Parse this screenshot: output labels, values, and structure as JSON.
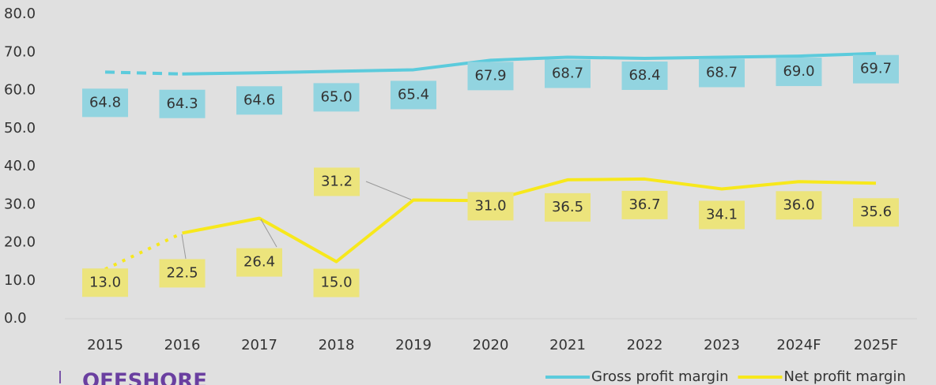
{
  "chart_data": {
    "type": "line",
    "categories": [
      "2015",
      "2016",
      "2017",
      "2018",
      "2019",
      "2020",
      "2021",
      "2022",
      "2023",
      "2024F",
      "2025F"
    ],
    "series": [
      {
        "name": "Gross profit margin",
        "color": "#5ccbdc",
        "label_color": "#92d4e0",
        "values": [
          64.8,
          64.3,
          64.6,
          65.0,
          65.4,
          67.9,
          68.7,
          68.4,
          68.7,
          69.0,
          69.7
        ],
        "value_labels": [
          "64.8",
          "64.3",
          "64.6",
          "65.0",
          "65.4",
          "67.9",
          "68.7",
          "68.4",
          "68.7",
          "69.0",
          "69.7"
        ]
      },
      {
        "name": "Net profit margin",
        "color": "#f7e81c",
        "label_color": "#ece47c",
        "values": [
          13.0,
          22.5,
          26.4,
          15.0,
          31.2,
          31.0,
          36.5,
          36.7,
          34.1,
          36.0,
          35.6
        ],
        "value_labels": [
          "13.0",
          "22.5",
          "26.4",
          "15.0",
          "31.2",
          "31.0",
          "36.5",
          "36.7",
          "34.1",
          "36.0",
          "35.6"
        ]
      }
    ],
    "ylim": [
      0,
      80
    ],
    "yticks": [
      {
        "value": 0,
        "label": "0.0"
      },
      {
        "value": 10,
        "label": "10.0"
      },
      {
        "value": 20,
        "label": "20.0"
      },
      {
        "value": 30,
        "label": "30.0"
      },
      {
        "value": 40,
        "label": "40.0"
      },
      {
        "value": 50,
        "label": "50.0"
      },
      {
        "value": 60,
        "label": "60.0"
      },
      {
        "value": 70,
        "label": "70.0"
      },
      {
        "value": 80,
        "label": "80.0"
      }
    ],
    "legend": "bottom-right",
    "logo": "OFFSHORE"
  }
}
